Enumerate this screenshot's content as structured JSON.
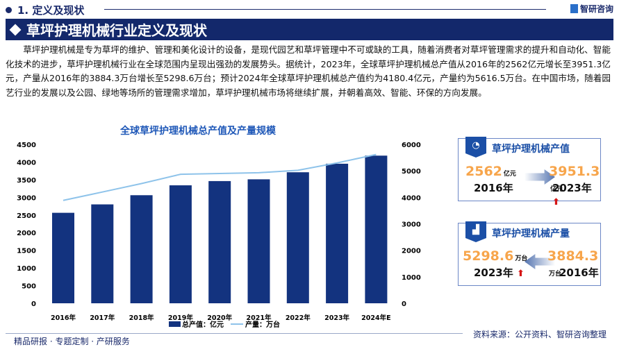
{
  "header": {
    "section": "1. 定义及现状",
    "logo": "智研咨询",
    "banner": "草坪护理机械行业定义及现状"
  },
  "paragraph": "草坪护理机械是专为草坪的维护、管理和美化设计的设备，是现代园艺和草坪管理中不可或缺的工具，随着消费者对草坪管理需求的提升和自动化、智能化技术的进步，草坪护理机械行业在全球范围内呈现出强劲的发展势头。据统计，2023年，全球草坪护理机械总产值从2016年的2562亿元增长至3951.3亿元，产量从2016年的3884.3万台增长至5298.6万台；预计2024年全球草坪护理机械总产值约为4180.4亿元，产量约为5616.5万台。在中国市场，随着园艺行业的发展以及公园、绿地等场所的管理需求增加，草坪护理机械市场将继续扩展，并朝着高效、智能、环保的方向发展。",
  "chart_data": {
    "type": "bar+line",
    "title": "全球草坪护理机械总产值及产量规模",
    "categories": [
      "2016年",
      "2017年",
      "2018年",
      "2019年",
      "2020年",
      "2021年",
      "2022年",
      "2023年",
      "2024年E"
    ],
    "series": [
      {
        "name": "总产值：亿元",
        "type": "bar",
        "axis": "left",
        "color": "#13337f",
        "values": [
          2562,
          2800,
          3060,
          3340,
          3460,
          3510,
          3710,
          3951.3,
          4180.4
        ]
      },
      {
        "name": "产量：万台",
        "type": "line",
        "axis": "right",
        "color": "#8ec3ea",
        "values": [
          3884.3,
          4200,
          4520,
          4870,
          4900,
          4930,
          5020,
          5298.6,
          5616.5
        ]
      }
    ],
    "yleft": {
      "ticks": [
        "0",
        "500",
        "1000",
        "1500",
        "2000",
        "2500",
        "3000",
        "3500",
        "4000",
        "4500"
      ],
      "lim": [
        0,
        4500
      ]
    },
    "yright": {
      "ticks": [
        "0",
        "1000",
        "2000",
        "3000",
        "4000",
        "5000",
        "6000"
      ],
      "lim": [
        0,
        6000
      ]
    },
    "legend": "bottom",
    "grid": false
  },
  "cards": [
    {
      "title": "草坪护理机械产值",
      "icon": "pie-chart-icon",
      "a_value": "2562",
      "a_unit": "亿元",
      "a_year": "2016年",
      "b_value": "3951.3",
      "b_unit": "亿元",
      "b_year": "2023年"
    },
    {
      "title": "草坪护理机械产量",
      "icon": "bar-growth-icon",
      "a_value": "5298.6",
      "a_unit": "万台",
      "a_year": "2023年",
      "b_value": "3884.3",
      "b_unit": "万台",
      "b_year": "2016年"
    }
  ],
  "source": "资料来源：公开资料、智研咨询整理",
  "footer": "精品研报 · 专题定制 · 产研服务"
}
